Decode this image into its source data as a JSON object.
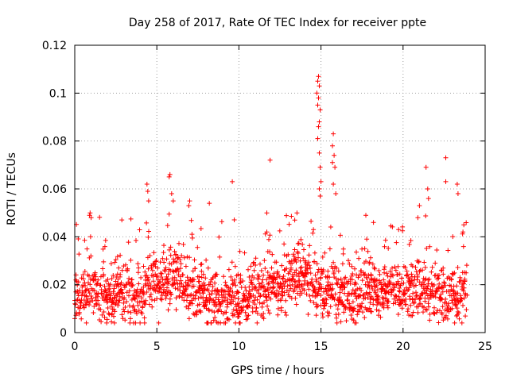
{
  "chart_data": {
    "type": "scatter",
    "title": "Day 258 of 2017, Rate Of TEC Index for receiver ppte",
    "xlabel": "GPS time / hours",
    "ylabel": "ROTI / TECUs",
    "xlim": [
      0,
      25
    ],
    "ylim": [
      0,
      0.12
    ],
    "xticks": [
      0,
      5,
      10,
      15,
      20,
      25
    ],
    "xtick_labels": [
      "0",
      "5",
      "10",
      "15",
      "20",
      "25"
    ],
    "yticks": [
      0,
      0.02,
      0.04,
      0.06,
      0.08,
      0.1,
      0.12
    ],
    "ytick_labels": [
      "0",
      "0.02",
      "0.04",
      "0.06",
      "0.08",
      "0.1",
      "0.12"
    ],
    "grid": true,
    "marker": "plus",
    "color": "#ff0000",
    "series": [
      {
        "name": "ROTI",
        "x_range": [
          0,
          23.9
        ],
        "x_step": 0.02,
        "baseline_profile": [
          [
            0,
            0.017
          ],
          [
            0.5,
            0.016
          ],
          [
            1.0,
            0.02
          ],
          [
            2.0,
            0.014
          ],
          [
            3.0,
            0.017
          ],
          [
            4.0,
            0.014
          ],
          [
            4.5,
            0.02
          ],
          [
            5.5,
            0.021
          ],
          [
            6.0,
            0.024
          ],
          [
            7.0,
            0.017
          ],
          [
            8.0,
            0.015
          ],
          [
            9.0,
            0.014
          ],
          [
            10.0,
            0.013
          ],
          [
            11.0,
            0.017
          ],
          [
            12.0,
            0.018
          ],
          [
            13.0,
            0.022
          ],
          [
            14.0,
            0.024
          ],
          [
            15.0,
            0.018
          ],
          [
            16.0,
            0.016
          ],
          [
            17.0,
            0.015
          ],
          [
            18.0,
            0.019
          ],
          [
            19.0,
            0.019
          ],
          [
            20.0,
            0.018
          ],
          [
            21.0,
            0.018
          ],
          [
            22.0,
            0.016
          ],
          [
            23.0,
            0.017
          ],
          [
            23.9,
            0.017
          ]
        ],
        "spread": 0.006,
        "highlights": [
          {
            "x": 14.85,
            "y": 0.107
          },
          {
            "x": 14.8,
            "y": 0.105
          },
          {
            "x": 14.9,
            "y": 0.103
          },
          {
            "x": 14.75,
            "y": 0.1
          },
          {
            "x": 14.85,
            "y": 0.098
          },
          {
            "x": 14.8,
            "y": 0.095
          },
          {
            "x": 14.95,
            "y": 0.093
          },
          {
            "x": 14.9,
            "y": 0.088
          },
          {
            "x": 14.85,
            "y": 0.086
          },
          {
            "x": 14.8,
            "y": 0.081
          },
          {
            "x": 14.9,
            "y": 0.075
          },
          {
            "x": 14.95,
            "y": 0.069
          },
          {
            "x": 15.0,
            "y": 0.063
          },
          {
            "x": 14.9,
            "y": 0.06
          },
          {
            "x": 14.95,
            "y": 0.057
          },
          {
            "x": 15.75,
            "y": 0.083
          },
          {
            "x": 15.7,
            "y": 0.078
          },
          {
            "x": 15.8,
            "y": 0.074
          },
          {
            "x": 15.7,
            "y": 0.071
          },
          {
            "x": 15.85,
            "y": 0.069
          },
          {
            "x": 15.75,
            "y": 0.062
          },
          {
            "x": 15.9,
            "y": 0.058
          },
          {
            "x": 11.9,
            "y": 0.072
          },
          {
            "x": 22.6,
            "y": 0.073
          },
          {
            "x": 21.4,
            "y": 0.069
          },
          {
            "x": 5.8,
            "y": 0.066
          },
          {
            "x": 5.75,
            "y": 0.065
          },
          {
            "x": 9.6,
            "y": 0.063
          },
          {
            "x": 22.6,
            "y": 0.063
          },
          {
            "x": 4.4,
            "y": 0.062
          },
          {
            "x": 4.45,
            "y": 0.059
          },
          {
            "x": 4.5,
            "y": 0.055
          },
          {
            "x": 5.9,
            "y": 0.058
          },
          {
            "x": 6.0,
            "y": 0.055
          },
          {
            "x": 7.0,
            "y": 0.055
          },
          {
            "x": 6.95,
            "y": 0.053
          },
          {
            "x": 8.2,
            "y": 0.054
          },
          {
            "x": 21.5,
            "y": 0.06
          },
          {
            "x": 21.55,
            "y": 0.056
          },
          {
            "x": 23.3,
            "y": 0.062
          },
          {
            "x": 23.35,
            "y": 0.058
          },
          {
            "x": 20.9,
            "y": 0.048
          },
          {
            "x": 21.0,
            "y": 0.053
          },
          {
            "x": 0.9,
            "y": 0.049
          },
          {
            "x": 1.0,
            "y": 0.048
          },
          {
            "x": 11.7,
            "y": 0.05
          },
          {
            "x": 13.4,
            "y": 0.047
          },
          {
            "x": 18.2,
            "y": 0.046
          },
          {
            "x": 23.7,
            "y": 0.045
          },
          {
            "x": 23.65,
            "y": 0.042
          }
        ]
      }
    ]
  }
}
